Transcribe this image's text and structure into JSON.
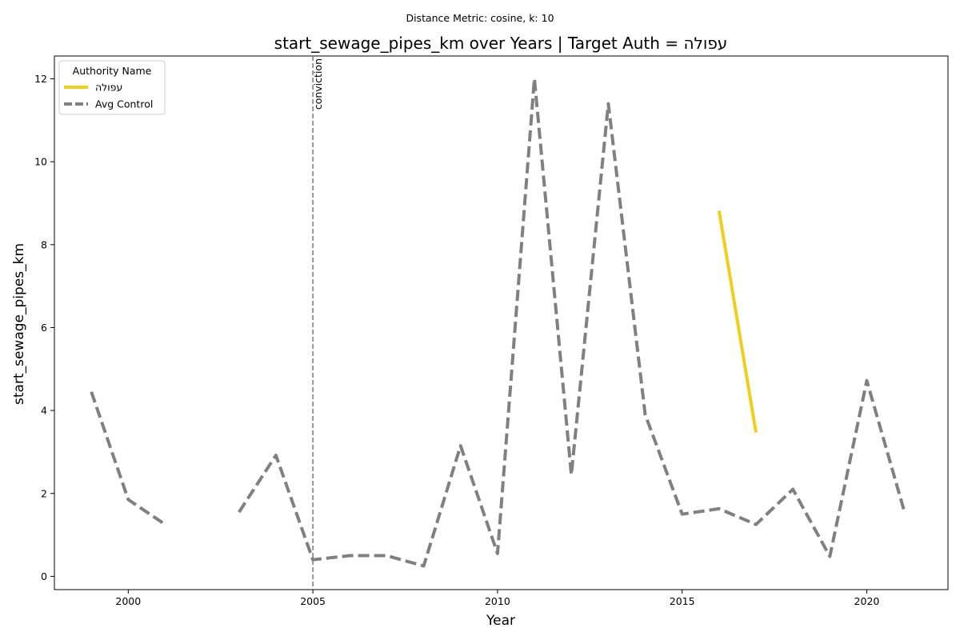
{
  "suptitle": "Distance Metric: cosine, k: 10",
  "chart_data": {
    "type": "line",
    "title": "start_sewage_pipes_km over Years | Target Auth = עפולה",
    "xlabel": "Year",
    "ylabel": "start_sewage_pipes_km",
    "xlim": [
      1998,
      2022.2
    ],
    "ylim": [
      -0.32,
      12.55
    ],
    "xticks": [
      2000,
      2005,
      2010,
      2015,
      2020
    ],
    "yticks": [
      0,
      2,
      4,
      6,
      8,
      10,
      12
    ],
    "grid": false,
    "legend": {
      "title": "Authority Name",
      "placement": "top-left"
    },
    "series": [
      {
        "name": "עפולה",
        "color": "#f2cd1e",
        "style": "solid",
        "x": [
          2016,
          2017
        ],
        "y": [
          8.82,
          3.47
        ]
      },
      {
        "name": "Avg Control",
        "color": "#808080",
        "style": "dashed",
        "x": [
          1999,
          2000,
          2001,
          2002,
          2003,
          2004,
          2005,
          2006,
          2007,
          2008,
          2009,
          2010,
          2011,
          2012,
          2013,
          2014,
          2015,
          2016,
          2017,
          2018,
          2019,
          2020,
          2021
        ],
        "y": [
          4.45,
          1.85,
          1.25,
          null,
          1.55,
          2.92,
          0.4,
          0.5,
          0.5,
          0.25,
          3.15,
          0.55,
          12.0,
          2.45,
          11.4,
          3.9,
          1.5,
          1.63,
          1.25,
          2.1,
          0.48,
          4.72,
          1.62
        ]
      }
    ],
    "annotations": [
      {
        "type": "vline",
        "x": 2005,
        "label": "conviction",
        "color": "#808080"
      }
    ]
  }
}
